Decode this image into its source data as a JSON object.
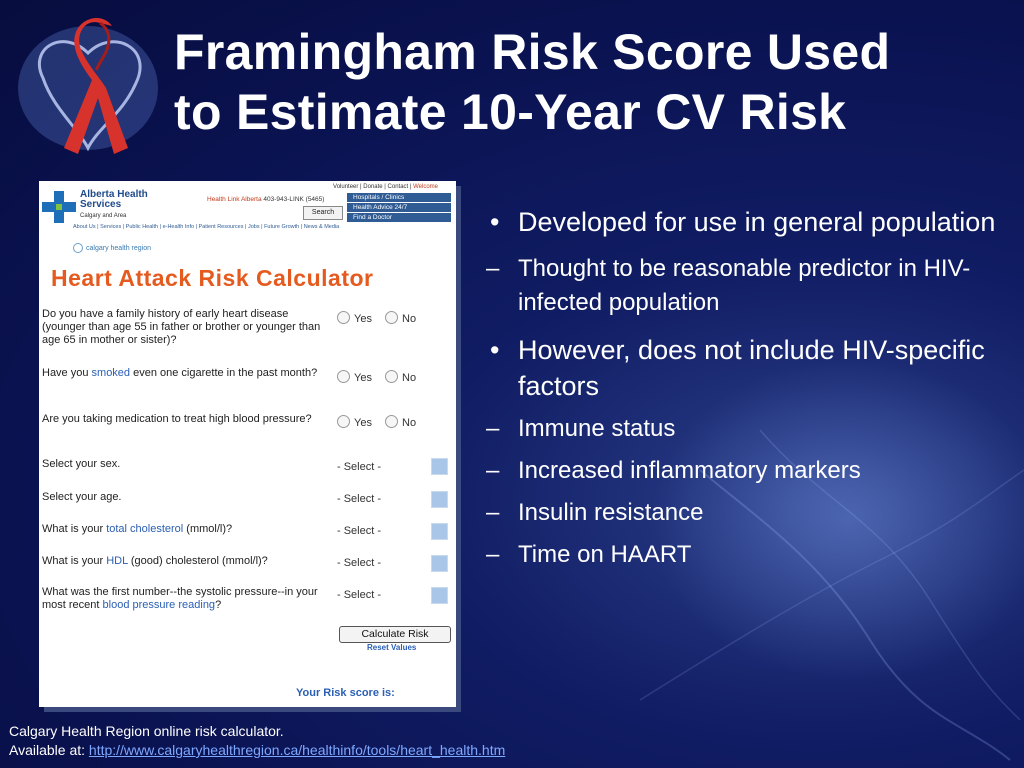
{
  "slide": {
    "title_line1": "Framingham Risk Score Used",
    "title_line2": "to Estimate 10-Year CV Risk"
  },
  "calculator": {
    "org_name_line1": "Alberta Health",
    "org_name_line2": "Services",
    "org_sub": "Calgary and Area",
    "top_links": "Volunteer | Donate | Contact |",
    "welcome": "Welcome",
    "health_link_label": "Health Link Alberta",
    "health_link_number": "403-943-LINK (5465)",
    "search_label": "Search",
    "quick_links": [
      "Hospitals / Clinics",
      "Health Advice 24/7",
      "Find a Doctor"
    ],
    "nav": "About Us | Services | Public Health | e-Health Info | Patient Resources | Jobs | Future Growth | News & Media",
    "region": "calgary health region",
    "heading": "Heart Attack Risk Calculator",
    "yes": "Yes",
    "no": "No",
    "q1": "Do you have a family history of early heart disease (younger than age 55 in father or brother or younger than age 65 in mother or sister)?",
    "q2_pre": "Have you ",
    "q2_link": "smoked",
    "q2_post": " even one cigarette in the past month?",
    "q3": "Are you taking medication to treat high blood pressure?",
    "q4": "Select your sex.",
    "q5": "Select your age.",
    "q6_pre": "What is your ",
    "q6_link": "total cholesterol",
    "q6_post": " (mmol/l)?",
    "q7_pre": "What is your ",
    "q7_link": "HDL",
    "q7_post": " (good) cholesterol (mmol/l)?",
    "q8_pre": "What was the first number--the systolic pressure--in your most recent ",
    "q8_link": "blood pressure reading",
    "q8_post": "?",
    "select_placeholder": "- Select -",
    "calculate_label": "Calculate Risk",
    "reset_label": "Reset Values",
    "score_label": "Your Risk score is:"
  },
  "bullets": {
    "b1": "Developed for use in general population",
    "b1_sub1": "Thought to be reasonable predictor in HIV-infected population",
    "b2": "However, does not include HIV-specific factors",
    "b2_subs": [
      "Immune status",
      "Increased inflammatory markers",
      "Insulin resistance",
      "Time on HAART"
    ],
    "bullet_mark": "•",
    "dash_mark": "–"
  },
  "footer": {
    "line1": "Calgary Health Region online risk calculator.",
    "line2_prefix": "Available at: ",
    "url": "http://www.calgaryhealthregion.ca/healthinfo/tools/heart_health.htm"
  }
}
